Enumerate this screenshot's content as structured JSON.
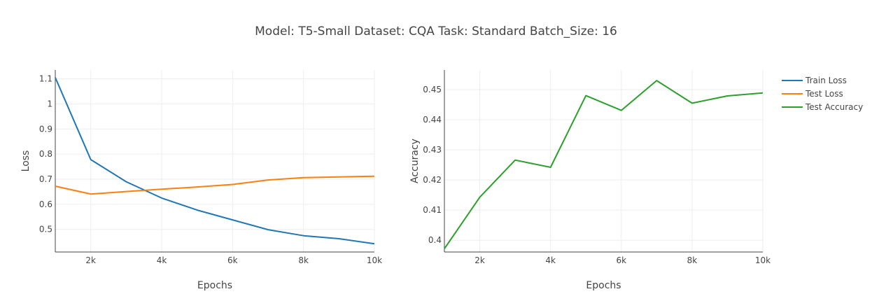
{
  "title": "Model: T5-Small Dataset: CQA Task: Standard Batch_Size: 16",
  "legend": [
    {
      "label": "Train Loss",
      "color": "#1f77b4"
    },
    {
      "label": "Test Loss",
      "color": "#ff7f0e"
    },
    {
      "label": "Test Accuracy",
      "color": "#2ca02c"
    }
  ],
  "chart_data": [
    {
      "type": "line",
      "xlabel": "Epochs",
      "ylabel": "Loss",
      "xlim": [
        1000,
        10000
      ],
      "ylim": [
        0.41,
        1.135
      ],
      "xticks": [
        2000,
        4000,
        6000,
        8000,
        10000
      ],
      "xtick_labels": [
        "2k",
        "4k",
        "6k",
        "8k",
        "10k"
      ],
      "yticks": [
        0.5,
        0.6,
        0.7,
        0.8,
        0.9,
        1.0,
        1.1
      ],
      "ytick_labels": [
        "0.5",
        "0.6",
        "0.7",
        "0.8",
        "0.9",
        "1",
        "1.1"
      ],
      "x": [
        1000,
        2000,
        3000,
        4000,
        5000,
        6000,
        7000,
        8000,
        9000,
        10000
      ],
      "series": [
        {
          "name": "Train Loss",
          "color": "#1f77b4",
          "values": [
            1.105,
            0.778,
            0.69,
            0.625,
            0.577,
            0.538,
            0.499,
            0.475,
            0.463,
            0.443
          ]
        },
        {
          "name": "Test Loss",
          "color": "#ff7f0e",
          "values": [
            0.672,
            0.641,
            0.651,
            0.66,
            0.669,
            0.679,
            0.697,
            0.706,
            0.709,
            0.712
          ]
        }
      ],
      "grid": true
    },
    {
      "type": "line",
      "xlabel": "Epochs",
      "ylabel": "Accuracy",
      "xlim": [
        1000,
        10000
      ],
      "ylim": [
        0.3961,
        0.4565
      ],
      "xticks": [
        2000,
        4000,
        6000,
        8000,
        10000
      ],
      "xtick_labels": [
        "2k",
        "4k",
        "6k",
        "8k",
        "10k"
      ],
      "yticks": [
        0.4,
        0.41,
        0.42,
        0.43,
        0.44,
        0.45
      ],
      "ytick_labels": [
        "0.4",
        "0.41",
        "0.42",
        "0.43",
        "0.44",
        "0.45"
      ],
      "x": [
        1000,
        2000,
        3000,
        4000,
        5000,
        6000,
        7000,
        8000,
        9000,
        10000
      ],
      "series": [
        {
          "name": "Test Accuracy",
          "color": "#2ca02c",
          "values": [
            0.3972,
            0.4143,
            0.4266,
            0.4242,
            0.448,
            0.4431,
            0.453,
            0.4455,
            0.4479,
            0.4489
          ]
        }
      ],
      "grid": true
    }
  ]
}
